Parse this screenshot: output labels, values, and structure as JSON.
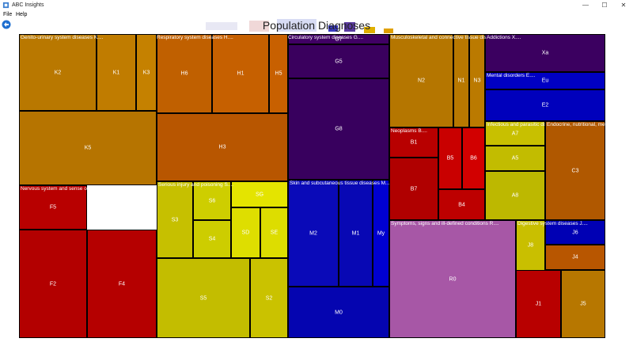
{
  "window": {
    "title": "ABC Insights",
    "minimize": "—",
    "maximize": "☐",
    "close": "✕"
  },
  "menu": [
    "File",
    "Help"
  ],
  "toolbar": {
    "back_icon": "back-arrow-icon"
  },
  "chart_data": {
    "type": "treemap",
    "title": "Population Diagnoses",
    "groups": [
      {
        "label": "Genito-urinary system diseases K....",
        "color": "#c27a00",
        "cells": [
          {
            "label": "K2",
            "color": "#b97800"
          },
          {
            "label": "K1",
            "color": "#c07c00"
          },
          {
            "label": "K3",
            "color": "#c58100"
          },
          {
            "label": "K5",
            "color": "#b67400"
          }
        ]
      },
      {
        "label": "Nervous system and sense organ diseases F....",
        "color": "#b80000",
        "cells": [
          {
            "label": "F5",
            "color": "#b80000"
          },
          {
            "label": "F2",
            "color": "#b30000"
          },
          {
            "label": "F4",
            "color": "#b50000"
          }
        ]
      },
      {
        "label": "Respiratory system diseases H....",
        "color": "#c45e00",
        "cells": [
          {
            "label": "H6",
            "color": "#c06000"
          },
          {
            "label": "H1",
            "color": "#c66000"
          },
          {
            "label": "H5",
            "color": "#c86000"
          },
          {
            "label": "H3",
            "color": "#b85600"
          }
        ]
      },
      {
        "label": "Serious injury and poisoning S....",
        "color": "#c9c000",
        "cells": [
          {
            "label": "S3",
            "color": "#c6c000"
          },
          {
            "label": "S6",
            "color": "#cece00"
          },
          {
            "label": "S4",
            "color": "#cdcd00"
          },
          {
            "label": "SG",
            "color": "#e4e400"
          },
          {
            "label": "SD",
            "color": "#dede00"
          },
          {
            "label": "SE",
            "color": "#dddd00"
          },
          {
            "label": "S5",
            "color": "#c3bd00"
          },
          {
            "label": "S2",
            "color": "#cac200"
          }
        ]
      },
      {
        "label": "Circulatory system diseases G....",
        "color": "#3a0060",
        "cells": [
          {
            "label": "G7",
            "color": "#400064"
          },
          {
            "label": "G5",
            "color": "#3a005e"
          },
          {
            "label": "G8",
            "color": "#38005e"
          }
        ]
      },
      {
        "label": "Skin and subcutaneous tissue diseases M....",
        "color": "#0a0ab8",
        "cells": [
          {
            "label": "M2",
            "color": "#0a0ab8"
          },
          {
            "label": "M1",
            "color": "#0808b4"
          },
          {
            "label": "My",
            "color": "#0000d0"
          },
          {
            "label": "M0",
            "color": "#0505b0"
          }
        ]
      },
      {
        "label": "Musculoskeletal and connective tissue diseases N....",
        "color": "#b57600",
        "cells": [
          {
            "label": "N2",
            "color": "#b57600"
          },
          {
            "label": "N1",
            "color": "#b87800"
          },
          {
            "label": "N3",
            "color": "#bb7a00"
          }
        ]
      },
      {
        "label": "Neoplasms B....",
        "color": "#b80000",
        "cells": [
          {
            "label": "B1",
            "color": "#b80000"
          },
          {
            "label": "B5",
            "color": "#c90000"
          },
          {
            "label": "B6",
            "color": "#d20000"
          },
          {
            "label": "B7",
            "color": "#b00000"
          },
          {
            "label": "B4",
            "color": "#bd0000"
          }
        ]
      },
      {
        "label": "Symptoms, signs and ill-defined conditions R....",
        "color": "#a858a8",
        "cells": [
          {
            "label": "R0",
            "color": "#a757a6"
          }
        ]
      },
      {
        "label": "Addictions X....",
        "color": "#3a0060",
        "cells": [
          {
            "label": "Xa",
            "color": "#3b0060"
          }
        ]
      },
      {
        "label": "Mental disorders E....",
        "color": "#0000b0",
        "cells": [
          {
            "label": "Eu",
            "color": "#0000c4"
          },
          {
            "label": "E2",
            "color": "#0000bc"
          }
        ]
      },
      {
        "label": "Infectious and parasitic diseases A....",
        "color": "#c8c000",
        "cells": [
          {
            "label": "A7",
            "color": "#c8c000"
          },
          {
            "label": "A5",
            "color": "#c2bc00"
          },
          {
            "label": "A8",
            "color": "#bdb800"
          }
        ]
      },
      {
        "label": "Endocrine, nutritional, metabolic C....",
        "color": "#ad5800",
        "cells": [
          {
            "label": "C3",
            "color": "#b05800"
          }
        ]
      },
      {
        "label": "Digestive system diseases J....",
        "color": "#b36a00",
        "cells": [
          {
            "label": "J8",
            "color": "#c9bf00"
          },
          {
            "label": "J6",
            "color": "#0000b4"
          },
          {
            "label": "J4",
            "color": "#b85600"
          },
          {
            "label": "J1",
            "color": "#b80000"
          },
          {
            "label": "J5",
            "color": "#b77700"
          }
        ]
      }
    ]
  }
}
